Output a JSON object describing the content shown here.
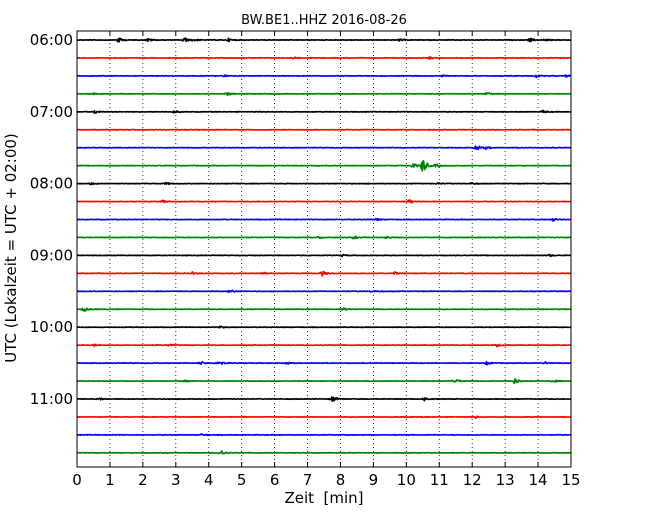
{
  "chart_data": {
    "type": "line",
    "title": "BW.BE1..HHZ 2016-08-26",
    "xlabel": "Zeit  [min]",
    "ylabel": "UTC (Lokalzeit = UTC + 02:00)",
    "xlim": [
      0,
      15
    ],
    "x_ticks": [
      "0",
      "1",
      "2",
      "3",
      "4",
      "5",
      "6",
      "7",
      "8",
      "9",
      "10",
      "11",
      "12",
      "13",
      "14",
      "15"
    ],
    "y_tick_labels": [
      "06:00",
      "07:00",
      "08:00",
      "09:00",
      "10:00",
      "11:00"
    ],
    "x_grid": true,
    "x_grid_style": "dotted",
    "trace_interval_min": 15,
    "trace_colors": [
      "#000000",
      "#ff0000",
      "#0000ff",
      "#008000"
    ],
    "series": [
      {
        "start": "06:00",
        "events": [
          [
            1.25,
            0.9
          ],
          [
            2.15,
            0.55
          ],
          [
            3.25,
            0.85
          ],
          [
            3.55,
            0.4
          ],
          [
            4.6,
            0.45
          ],
          [
            9.8,
            0.4
          ],
          [
            13.75,
            0.6
          ],
          [
            14.2,
            0.3
          ]
        ]
      },
      {
        "start": "06:15",
        "events": [
          [
            6.6,
            0.3
          ],
          [
            10.7,
            0.35
          ]
        ]
      },
      {
        "start": "06:30",
        "events": [
          [
            4.5,
            0.3
          ],
          [
            11.1,
            0.2
          ],
          [
            13.95,
            0.45
          ],
          [
            14.85,
            0.3
          ]
        ]
      },
      {
        "start": "06:45",
        "events": [
          [
            0.5,
            0.2
          ],
          [
            4.55,
            0.4
          ],
          [
            12.45,
            0.5
          ]
        ]
      },
      {
        "start": "07:00",
        "events": [
          [
            0.55,
            0.55
          ],
          [
            2.95,
            0.45
          ],
          [
            14.15,
            0.4
          ]
        ]
      },
      {
        "start": "07:15",
        "events": []
      },
      {
        "start": "07:30",
        "events": [
          [
            12.1,
            1.1
          ],
          [
            12.4,
            0.4
          ]
        ]
      },
      {
        "start": "07:45",
        "events": [
          [
            10.2,
            0.9
          ],
          [
            10.5,
            2.4
          ],
          [
            10.9,
            0.5
          ]
        ]
      },
      {
        "start": "08:00",
        "events": [
          [
            0.4,
            0.35
          ],
          [
            2.7,
            0.3
          ],
          [
            10.95,
            0.3
          ],
          [
            12.0,
            0.3
          ]
        ]
      },
      {
        "start": "08:15",
        "events": [
          [
            2.6,
            0.35
          ],
          [
            10.1,
            0.6
          ]
        ]
      },
      {
        "start": "08:30",
        "events": [
          [
            9.1,
            0.3
          ],
          [
            14.45,
            0.45
          ]
        ]
      },
      {
        "start": "08:45",
        "events": [
          [
            7.35,
            0.35
          ],
          [
            8.4,
            0.45
          ],
          [
            9.4,
            0.4
          ]
        ]
      },
      {
        "start": "09:00",
        "events": [
          [
            8.05,
            0.3
          ],
          [
            14.35,
            0.3
          ]
        ]
      },
      {
        "start": "09:15",
        "events": [
          [
            3.5,
            0.35
          ],
          [
            5.65,
            0.4
          ],
          [
            7.45,
            0.8
          ],
          [
            9.65,
            0.4
          ]
        ]
      },
      {
        "start": "09:30",
        "events": [
          [
            4.65,
            0.6
          ],
          [
            8.95,
            0.3
          ]
        ]
      },
      {
        "start": "09:45",
        "events": [
          [
            0.2,
            0.7
          ],
          [
            8.1,
            0.4
          ]
        ]
      },
      {
        "start": "10:00",
        "events": [
          [
            4.35,
            0.35
          ]
        ]
      },
      {
        "start": "10:15",
        "events": [
          [
            0.55,
            0.4
          ],
          [
            2.8,
            0.35
          ],
          [
            12.75,
            0.45
          ]
        ]
      },
      {
        "start": "10:30",
        "events": [
          [
            3.75,
            0.5
          ],
          [
            4.3,
            0.9
          ],
          [
            6.35,
            0.45
          ],
          [
            12.45,
            0.5
          ],
          [
            14.2,
            0.35
          ]
        ]
      },
      {
        "start": "10:45",
        "events": [
          [
            3.25,
            0.3
          ],
          [
            11.45,
            1.0
          ],
          [
            13.3,
            0.9
          ],
          [
            14.45,
            0.3
          ]
        ]
      },
      {
        "start": "11:00",
        "events": [
          [
            0.7,
            0.3
          ],
          [
            7.75,
            0.95
          ],
          [
            10.55,
            0.5
          ]
        ]
      },
      {
        "start": "11:15",
        "events": [
          [
            12.1,
            0.4
          ]
        ]
      },
      {
        "start": "11:30",
        "events": [
          [
            3.8,
            0.3
          ]
        ]
      },
      {
        "start": "11:45",
        "events": [
          [
            4.35,
            1.0
          ]
        ]
      }
    ]
  }
}
